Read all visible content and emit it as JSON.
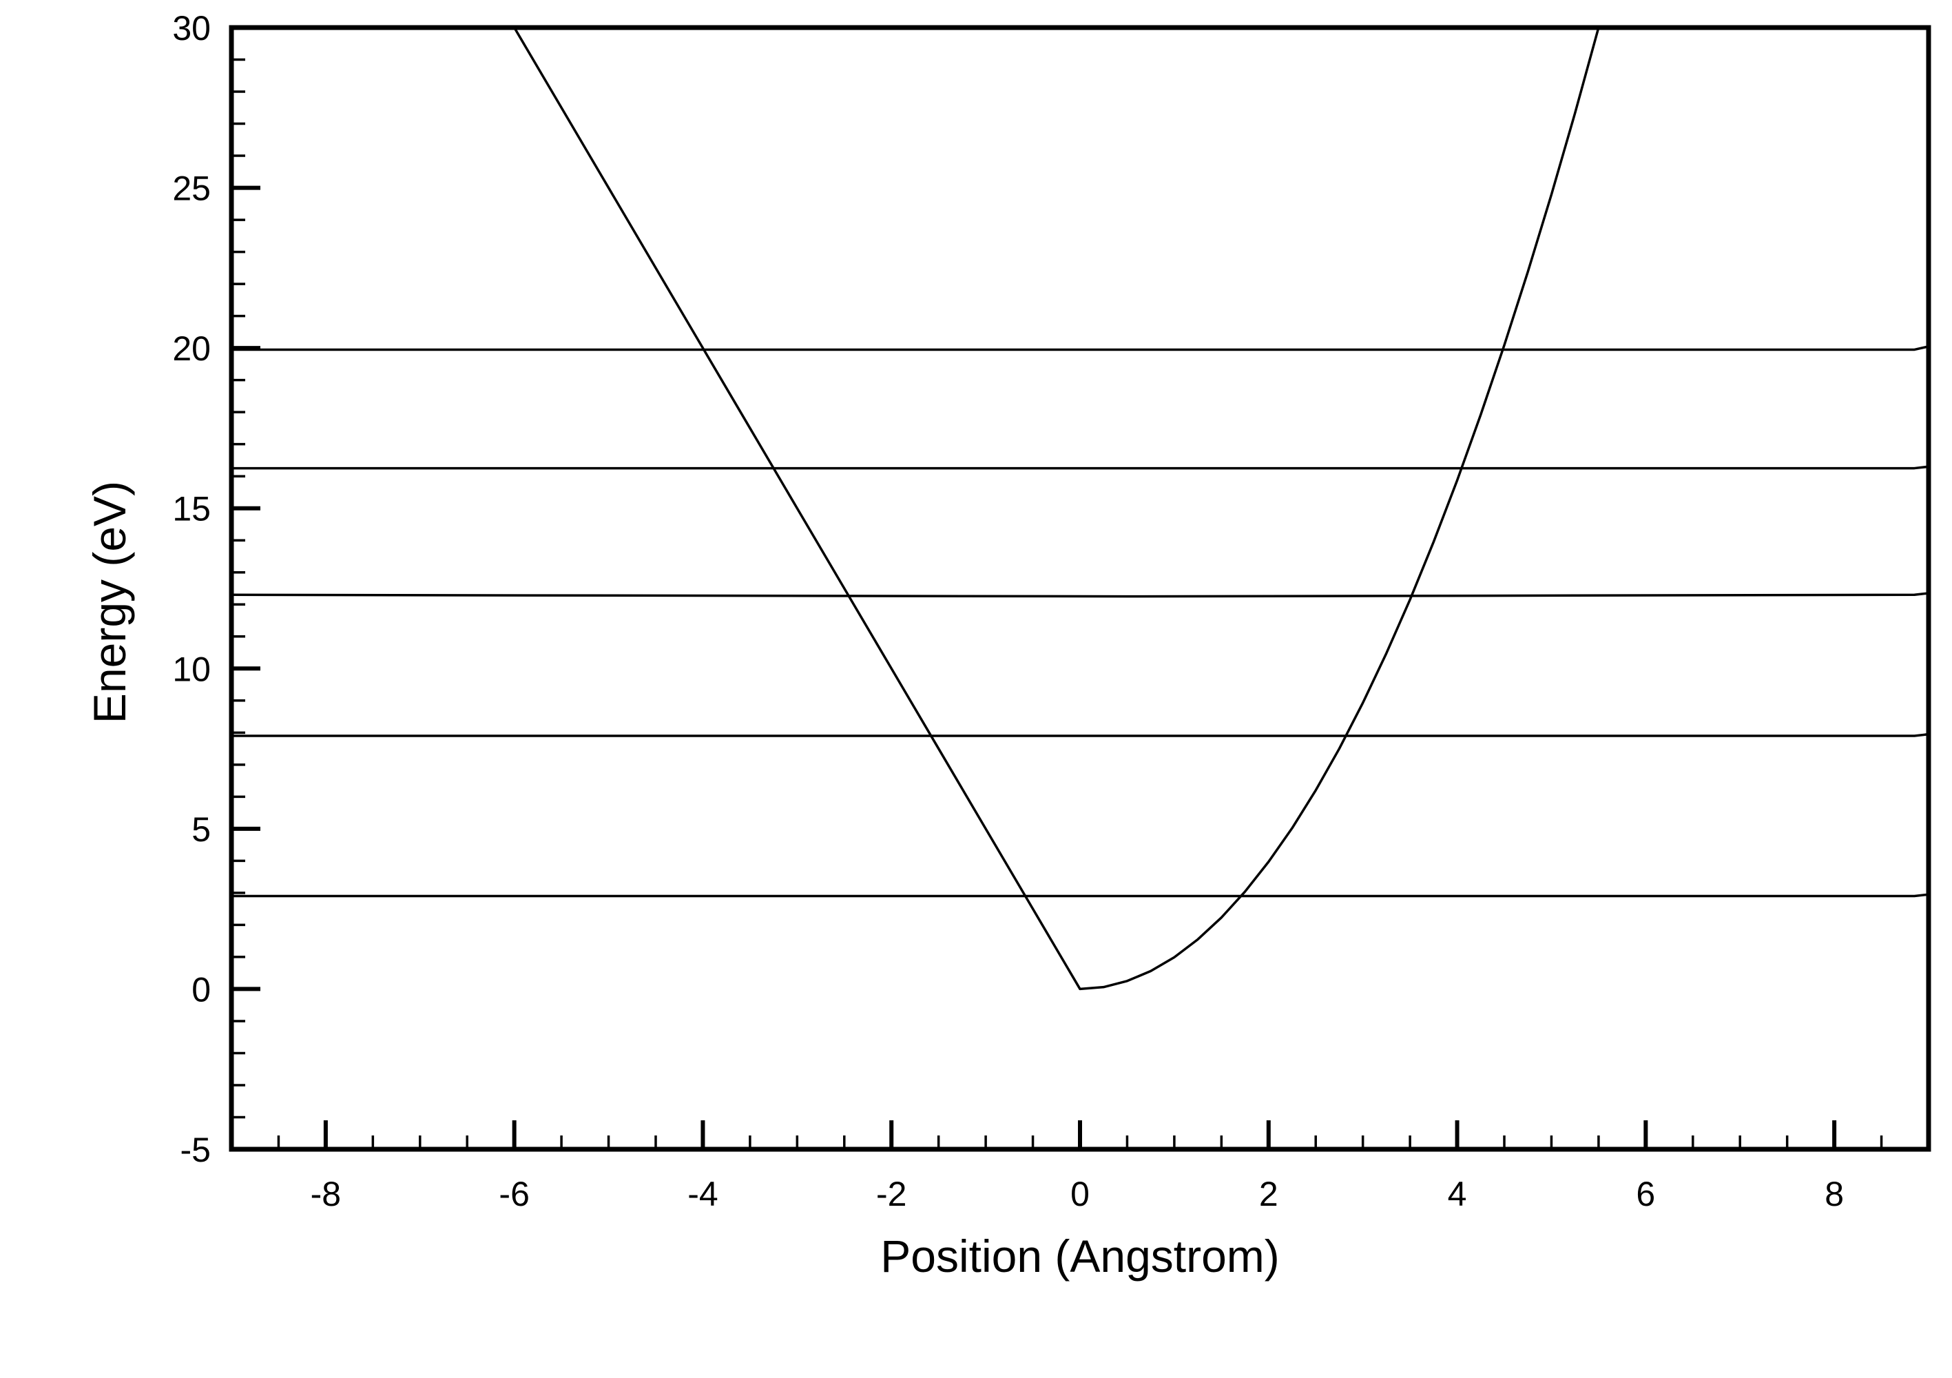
{
  "chart_data": {
    "type": "line",
    "title": "",
    "xlabel": "Position (Angstrom)",
    "ylabel": "Energy (eV)",
    "xlim": [
      -9,
      9
    ],
    "ylim": [
      -5,
      30
    ],
    "x_ticks": [
      -8,
      -6,
      -4,
      -2,
      0,
      2,
      4,
      6,
      8
    ],
    "x_tick_labels": [
      "-8",
      "-6",
      "-4",
      "-2",
      "0",
      "2",
      "4",
      "6",
      "8"
    ],
    "y_ticks": [
      -5,
      0,
      5,
      10,
      15,
      20,
      25,
      30
    ],
    "y_tick_labels": [
      "-5",
      "0",
      "5",
      "10",
      "15",
      "20",
      "25",
      "30"
    ],
    "x_minor_step": 0.5,
    "y_minor_step": 1,
    "grid": false,
    "legend": "none",
    "series": [
      {
        "kind": "potential",
        "x": [
          -6.0,
          -5.5,
          -5.0,
          -4.5,
          -4.0,
          -3.5,
          -3.0,
          -2.5,
          -2.0,
          -1.5,
          -1.0,
          -0.5,
          0.0,
          0.25,
          0.5,
          0.75,
          1.0,
          1.25,
          1.5,
          1.75,
          2.0,
          2.25,
          2.5,
          2.75,
          3.0,
          3.25,
          3.5,
          3.75,
          4.0,
          4.25,
          4.5,
          4.75,
          5.0,
          5.25,
          5.5
        ],
        "y": [
          30.0,
          27.5,
          25.0,
          22.5,
          20.0,
          17.5,
          15.0,
          12.5,
          10.0,
          7.5,
          5.0,
          2.5,
          0.0,
          0.06,
          0.25,
          0.56,
          0.99,
          1.55,
          2.23,
          3.04,
          3.97,
          5.02,
          6.2,
          7.5,
          8.93,
          10.48,
          12.15,
          13.95,
          15.87,
          17.92,
          20.09,
          22.38,
          24.79,
          27.33,
          30.0
        ]
      },
      {
        "kind": "level",
        "x": [
          -9,
          8.85,
          9
        ],
        "y": [
          2.9,
          2.9,
          2.95
        ]
      },
      {
        "kind": "level",
        "x": [
          -9,
          8.85,
          9
        ],
        "y": [
          7.9,
          7.9,
          7.95
        ]
      },
      {
        "kind": "level",
        "x": [
          -9,
          0.5,
          8.85,
          9
        ],
        "y": [
          12.3,
          12.25,
          12.3,
          12.35
        ]
      },
      {
        "kind": "level",
        "x": [
          -9,
          8.85,
          9
        ],
        "y": [
          16.25,
          16.25,
          16.3
        ]
      },
      {
        "kind": "level",
        "x": [
          -9,
          8.85,
          9
        ],
        "y": [
          19.95,
          19.95,
          20.05
        ]
      }
    ]
  }
}
